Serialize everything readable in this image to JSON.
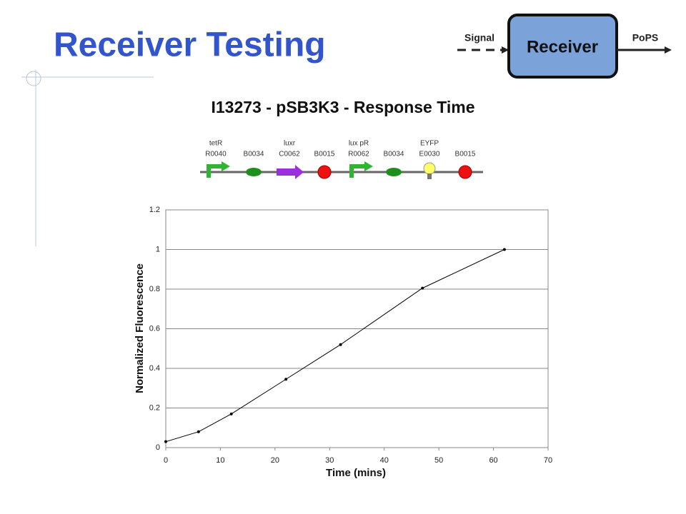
{
  "slide": {
    "title": "Receiver Testing",
    "diagram": {
      "input": "Signal",
      "device": "Receiver",
      "output": "PoPS"
    },
    "parts": [
      {
        "name": "tetR",
        "id": "R0040"
      },
      {
        "id": "B0034"
      },
      {
        "name": "luxr",
        "id": "C0062"
      },
      {
        "id": "B0015"
      },
      {
        "name": "lux pR",
        "id": "R0062"
      },
      {
        "id": "B0034"
      },
      {
        "name": "EYFP",
        "id": "E0030"
      },
      {
        "id": "B0015"
      }
    ]
  },
  "chart_data": {
    "type": "line",
    "title": "I13273 - pSB3K3 - Response Time",
    "x_label": "Time (mins)",
    "y_label": "Normalized Fluorescence",
    "x": [
      0,
      6,
      12,
      22,
      32,
      47,
      62
    ],
    "series": [
      {
        "color": "#000000",
        "values": [
          0.03,
          0.08,
          0.17,
          0.345,
          0.52,
          0.805,
          1.0
        ]
      }
    ],
    "xlim": [
      0,
      70
    ],
    "xticks": [
      0,
      10,
      20,
      30,
      40,
      50,
      60,
      70
    ],
    "ylim": [
      0,
      1.2
    ],
    "yticks": [
      0,
      0.2,
      0.4,
      0.6,
      0.8,
      1,
      1.2
    ],
    "grid": true
  }
}
